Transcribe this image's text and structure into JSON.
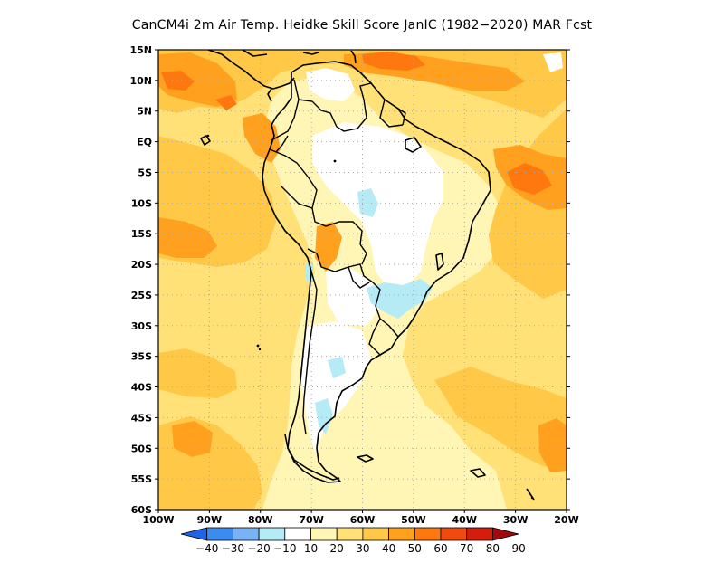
{
  "title": "CanCM4i  2m Air Temp. Heidke Skill Score JanIC (1982−2020) MAR Fcst",
  "map": {
    "lat_labels": [
      "15N",
      "10N",
      "5N",
      "EQ",
      "5S",
      "10S",
      "15S",
      "20S",
      "25S",
      "30S",
      "35S",
      "40S",
      "45S",
      "50S",
      "55S",
      "60S"
    ],
    "lon_labels": [
      "100W",
      "90W",
      "80W",
      "70W",
      "60W",
      "50W",
      "40W",
      "30W",
      "20W"
    ],
    "lat_range": [
      -60,
      15
    ],
    "lon_range": [
      -100,
      -20
    ],
    "grid": "dotted"
  },
  "colorbar": {
    "labels": [
      "−40",
      "−30",
      "−20",
      "−10",
      "10",
      "20",
      "30",
      "40",
      "50",
      "60",
      "70",
      "80",
      "90"
    ],
    "colors": [
      "#1e64e6",
      "#3c8cf0",
      "#78b4f5",
      "#b4ebf5",
      "#ffffff",
      "#fff5b4",
      "#ffe178",
      "#ffc846",
      "#ffa01e",
      "#ff780f",
      "#f04b0f",
      "#d21e0a",
      "#a00a0a"
    ]
  }
}
